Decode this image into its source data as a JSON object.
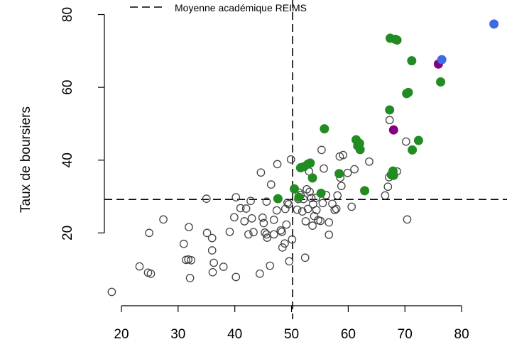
{
  "chart_data": {
    "type": "scatter",
    "title": "",
    "xlabel": "",
    "ylabel": "Taux de boursiers",
    "xlim": [
      17,
      88
    ],
    "ylim": [
      0,
      84
    ],
    "x_ticks": [
      20,
      30,
      40,
      50,
      60,
      70,
      80
    ],
    "y_ticks": [
      20,
      40,
      60,
      80
    ],
    "x_tick_labels": [
      "20",
      "30",
      "40",
      "50",
      "60",
      "70",
      "80"
    ],
    "y_tick_labels": [
      "20",
      "40",
      "60",
      "80"
    ],
    "grid": false,
    "legend": {
      "position": "top",
      "entries": [
        {
          "label": "Moyenne académique  REIMS",
          "style": "dashed-line"
        }
      ]
    },
    "reference_lines": {
      "vertical_x": 50.2,
      "horizontal_y": 29.2
    },
    "colors": {
      "open": "#444444",
      "green": "#228b22",
      "purple": "#800080",
      "blue": "#4169e1"
    },
    "series": [
      {
        "style": "open",
        "points": [
          [
            18.3,
            3.8
          ],
          [
            23.2,
            10.8
          ],
          [
            24.7,
            9.1
          ],
          [
            25.2,
            8.8
          ],
          [
            24.9,
            20.0
          ],
          [
            27.4,
            23.7
          ],
          [
            31.0,
            17.0
          ],
          [
            31.4,
            12.6
          ],
          [
            31.8,
            12.7
          ],
          [
            32.1,
            7.6
          ],
          [
            32.3,
            12.5
          ],
          [
            31.9,
            21.6
          ],
          [
            35.0,
            29.4
          ],
          [
            35.1,
            20.0
          ],
          [
            36.0,
            18.6
          ],
          [
            36.0,
            15.2
          ],
          [
            36.3,
            11.8
          ],
          [
            36.1,
            9.2
          ],
          [
            38.0,
            10.7
          ],
          [
            39.1,
            20.3
          ],
          [
            39.9,
            24.3
          ],
          [
            40.2,
            29.8
          ],
          [
            40.2,
            7.9
          ],
          [
            41.0,
            26.8
          ],
          [
            41.7,
            23.2
          ],
          [
            42.0,
            26.7
          ],
          [
            42.4,
            19.6
          ],
          [
            42.8,
            28.8
          ],
          [
            43.0,
            24.0
          ],
          [
            43.3,
            20.2
          ],
          [
            44.4,
            8.8
          ],
          [
            44.6,
            36.6
          ],
          [
            44.9,
            24.2
          ],
          [
            45.1,
            22.7
          ],
          [
            45.3,
            20.1
          ],
          [
            45.6,
            28.6
          ],
          [
            45.6,
            19.6
          ],
          [
            45.7,
            18.7
          ],
          [
            46.2,
            11.0
          ],
          [
            46.4,
            33.3
          ],
          [
            46.9,
            23.6
          ],
          [
            46.9,
            19.6
          ],
          [
            47.4,
            26.2
          ],
          [
            47.5,
            38.9
          ],
          [
            48.1,
            20.7
          ],
          [
            48.3,
            20.3
          ],
          [
            48.4,
            16.0
          ],
          [
            48.8,
            17.1
          ],
          [
            48.9,
            26.6
          ],
          [
            49.1,
            22.3
          ],
          [
            49.3,
            28.3
          ],
          [
            49.6,
            12.2
          ],
          [
            49.5,
            27.9
          ],
          [
            49.9,
            40.2
          ],
          [
            50.1,
            18.2
          ],
          [
            51.0,
            26.4
          ],
          [
            51.2,
            29.3
          ],
          [
            51.3,
            31.1
          ],
          [
            51.6,
            30.4
          ],
          [
            51.9,
            25.9
          ],
          [
            52.1,
            29.3
          ],
          [
            52.4,
            13.2
          ],
          [
            52.5,
            23.2
          ],
          [
            52.7,
            32.0
          ],
          [
            52.9,
            26.6
          ],
          [
            53.1,
            36.9
          ],
          [
            53.2,
            31.3
          ],
          [
            53.5,
            29.6
          ],
          [
            53.7,
            22.0
          ],
          [
            53.8,
            27.9
          ],
          [
            54.0,
            24.6
          ],
          [
            54.3,
            29.6
          ],
          [
            54.4,
            26.3
          ],
          [
            54.7,
            23.5
          ],
          [
            55.1,
            23.3
          ],
          [
            55.3,
            42.8
          ],
          [
            55.5,
            28.2
          ],
          [
            55.7,
            37.7
          ],
          [
            56.1,
            30.4
          ],
          [
            56.6,
            19.5
          ],
          [
            56.6,
            22.9
          ],
          [
            57.2,
            28.0
          ],
          [
            57.6,
            26.3
          ],
          [
            57.9,
            26.6
          ],
          [
            58.1,
            30.3
          ],
          [
            58.5,
            41.0
          ],
          [
            58.6,
            35.2
          ],
          [
            58.8,
            32.9
          ],
          [
            59.1,
            41.4
          ],
          [
            59.9,
            36.5
          ],
          [
            60.6,
            27.2
          ],
          [
            61.1,
            37.5
          ],
          [
            61.6,
            43.9
          ],
          [
            63.7,
            39.6
          ],
          [
            66.5,
            30.3
          ],
          [
            67.0,
            32.7
          ],
          [
            67.2,
            35.3
          ],
          [
            67.3,
            51.0
          ],
          [
            68.6,
            36.9
          ],
          [
            70.2,
            45.1
          ],
          [
            70.4,
            23.7
          ]
        ]
      },
      {
        "style": "green",
        "points": [
          [
            47.6,
            29.4
          ],
          [
            50.5,
            32.1
          ],
          [
            51.3,
            29.8
          ],
          [
            51.6,
            37.9
          ],
          [
            52.2,
            38.2
          ],
          [
            52.9,
            38.9
          ],
          [
            53.3,
            39.2
          ],
          [
            53.7,
            35.1
          ],
          [
            55.2,
            30.9
          ],
          [
            55.8,
            48.6
          ],
          [
            58.4,
            36.3
          ],
          [
            61.4,
            45.6
          ],
          [
            61.7,
            44.1
          ],
          [
            62.0,
            44.6
          ],
          [
            62.1,
            42.9
          ],
          [
            62.9,
            31.6
          ],
          [
            67.3,
            53.8
          ],
          [
            67.4,
            73.5
          ],
          [
            67.6,
            36.0
          ],
          [
            67.9,
            37.0
          ],
          [
            68.0,
            35.8
          ],
          [
            68.3,
            73.2
          ],
          [
            68.6,
            73.0
          ],
          [
            70.3,
            58.3
          ],
          [
            70.6,
            58.6
          ],
          [
            71.2,
            67.3
          ],
          [
            71.3,
            42.8
          ],
          [
            72.4,
            45.4
          ],
          [
            76.3,
            61.5
          ]
        ]
      },
      {
        "style": "purple",
        "points": [
          [
            68.0,
            48.3
          ],
          [
            75.9,
            66.4
          ]
        ]
      },
      {
        "style": "blue",
        "points": [
          [
            76.5,
            67.6
          ],
          [
            85.7,
            77.4
          ]
        ]
      }
    ]
  }
}
